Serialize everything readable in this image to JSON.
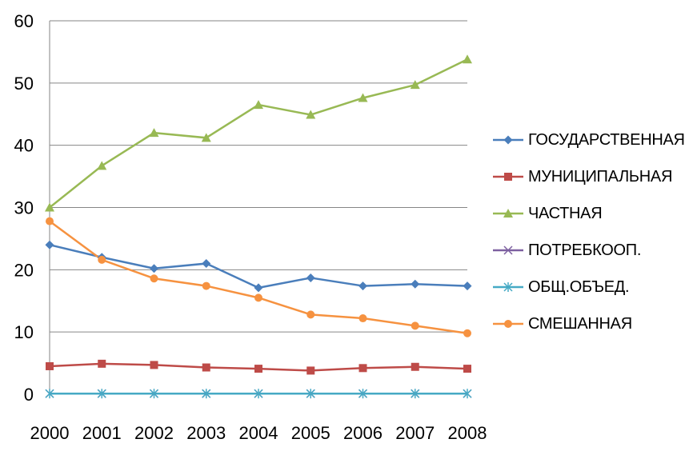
{
  "chart_data": {
    "type": "line",
    "title": "",
    "xlabel": "",
    "ylabel": "",
    "x": [
      "2000",
      "2001",
      "2002",
      "2003",
      "2004",
      "2005",
      "2006",
      "2007",
      "2008"
    ],
    "ylim": [
      0,
      60
    ],
    "yticks": [
      "0",
      "10",
      "20",
      "30",
      "40",
      "50",
      "60"
    ],
    "grid": "horizontal",
    "legend_position": "right",
    "series": [
      {
        "name": "ГОСУДАРСТВЕННАЯ",
        "color": "#4a7ebb",
        "marker": "diamond",
        "values": [
          24.0,
          22.0,
          20.2,
          21.0,
          17.1,
          18.7,
          17.4,
          17.7,
          17.4
        ]
      },
      {
        "name": "МУНИЦИПАЛЬНАЯ",
        "color": "#be4b48",
        "marker": "square",
        "values": [
          4.5,
          4.9,
          4.7,
          4.3,
          4.1,
          3.8,
          4.2,
          4.4,
          4.1
        ]
      },
      {
        "name": "ЧАСТНАЯ",
        "color": "#98b954",
        "marker": "triangle",
        "values": [
          30.0,
          36.7,
          42.0,
          41.2,
          46.5,
          44.9,
          47.6,
          49.7,
          53.8
        ]
      },
      {
        "name": "ПОТРЕБКООП.",
        "color": "#7d60a0",
        "marker": "x",
        "values": [
          0.1,
          0.1,
          0.1,
          0.1,
          0.1,
          0.1,
          0.1,
          0.1,
          0.1
        ]
      },
      {
        "name": "ОБЩ.ОБЪЕД.",
        "color": "#46aac5",
        "marker": "asterisk",
        "values": [
          0.1,
          0.1,
          0.1,
          0.1,
          0.1,
          0.1,
          0.1,
          0.1,
          0.1
        ]
      },
      {
        "name": "СМЕШАННАЯ",
        "color": "#f69240",
        "marker": "circle",
        "values": [
          27.8,
          21.6,
          18.6,
          17.4,
          15.5,
          12.8,
          12.2,
          11.0,
          9.8
        ]
      }
    ]
  }
}
